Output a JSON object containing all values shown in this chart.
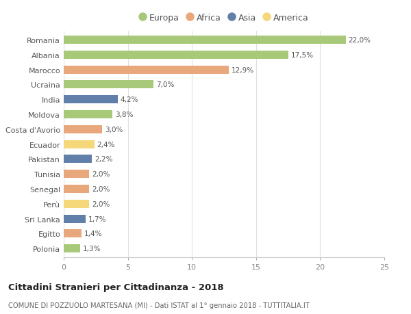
{
  "categories": [
    "Romania",
    "Albania",
    "Marocco",
    "Ucraina",
    "India",
    "Moldova",
    "Costa d'Avorio",
    "Ecuador",
    "Pakistan",
    "Tunisia",
    "Senegal",
    "Perù",
    "Sri Lanka",
    "Egitto",
    "Polonia"
  ],
  "values": [
    22.0,
    17.5,
    12.9,
    7.0,
    4.2,
    3.8,
    3.0,
    2.4,
    2.2,
    2.0,
    2.0,
    2.0,
    1.7,
    1.4,
    1.3
  ],
  "continents": [
    "Europa",
    "Europa",
    "Africa",
    "Europa",
    "Asia",
    "Europa",
    "Africa",
    "America",
    "Asia",
    "Africa",
    "Africa",
    "America",
    "Asia",
    "Africa",
    "Europa"
  ],
  "continent_colors": {
    "Europa": "#a8c87a",
    "Africa": "#e8a87c",
    "Asia": "#6080aa",
    "America": "#f5d87a"
  },
  "legend_order": [
    "Europa",
    "Africa",
    "Asia",
    "America"
  ],
  "title": "Cittadini Stranieri per Cittadinanza - 2018",
  "subtitle": "COMUNE DI POZZUOLO MARTESANA (MI) - Dati ISTAT al 1° gennaio 2018 - TUTTITALIA.IT",
  "xlim": [
    0,
    25
  ],
  "xticks": [
    0,
    5,
    10,
    15,
    20,
    25
  ],
  "background_color": "#ffffff",
  "grid_color": "#e0e0e0",
  "bar_height": 0.55
}
